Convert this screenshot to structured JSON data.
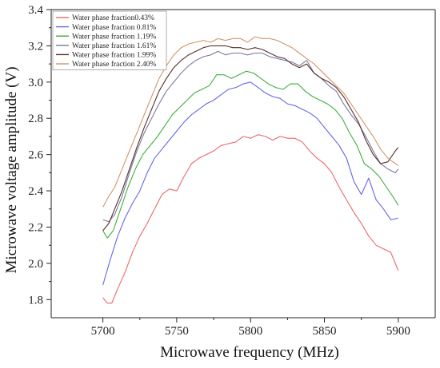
{
  "chart_data": {
    "type": "line",
    "title": "",
    "xlabel": "Microwave frequency  (MHz)",
    "ylabel": "Microwave voltage amplitude  (V)",
    "xlim": [
      5665,
      5925
    ],
    "ylim": [
      1.7,
      3.4
    ],
    "x_ticks": [
      5700,
      5750,
      5800,
      5850,
      5900
    ],
    "y_ticks": [
      1.8,
      2.0,
      2.2,
      2.4,
      2.6,
      2.8,
      3.0,
      3.2,
      3.4
    ],
    "y_tick_labels": [
      "1.8",
      "2.0",
      "2.2",
      "2.4",
      "2.6",
      "2.8",
      "3.0",
      "3.2",
      "3.4"
    ],
    "grid": false,
    "legend_position": "top-left",
    "series": [
      {
        "name": "Water phase fraction0.43%",
        "color": "#e8696b",
        "x": [
          5700,
          5703,
          5706,
          5710,
          5715,
          5720,
          5725,
          5730,
          5735,
          5740,
          5745,
          5750,
          5755,
          5760,
          5765,
          5770,
          5775,
          5780,
          5785,
          5790,
          5795,
          5800,
          5805,
          5810,
          5815,
          5820,
          5825,
          5830,
          5835,
          5840,
          5845,
          5850,
          5855,
          5860,
          5865,
          5870,
          5875,
          5880,
          5885,
          5890,
          5895,
          5900
        ],
        "y": [
          1.81,
          1.78,
          1.78,
          1.86,
          1.95,
          2.06,
          2.15,
          2.22,
          2.3,
          2.38,
          2.41,
          2.4,
          2.48,
          2.55,
          2.58,
          2.6,
          2.62,
          2.65,
          2.66,
          2.67,
          2.7,
          2.69,
          2.71,
          2.7,
          2.68,
          2.7,
          2.69,
          2.69,
          2.67,
          2.62,
          2.58,
          2.55,
          2.5,
          2.42,
          2.35,
          2.28,
          2.22,
          2.15,
          2.1,
          2.08,
          2.06,
          1.96
        ]
      },
      {
        "name": "Water phase fraction 0.81%",
        "color": "#6666e8",
        "x": [
          5700,
          5705,
          5710,
          5715,
          5720,
          5725,
          5730,
          5735,
          5740,
          5745,
          5750,
          5755,
          5760,
          5765,
          5770,
          5775,
          5780,
          5785,
          5790,
          5795,
          5800,
          5805,
          5810,
          5815,
          5820,
          5825,
          5830,
          5835,
          5840,
          5845,
          5850,
          5855,
          5860,
          5865,
          5870,
          5875,
          5880,
          5885,
          5890,
          5895,
          5900
        ],
        "y": [
          1.88,
          2.02,
          2.15,
          2.25,
          2.33,
          2.4,
          2.5,
          2.58,
          2.63,
          2.68,
          2.73,
          2.78,
          2.82,
          2.85,
          2.88,
          2.9,
          2.93,
          2.96,
          2.97,
          2.99,
          3.0,
          2.97,
          2.94,
          2.92,
          2.91,
          2.88,
          2.87,
          2.85,
          2.83,
          2.8,
          2.75,
          2.7,
          2.65,
          2.58,
          2.45,
          2.38,
          2.47,
          2.35,
          2.3,
          2.24,
          2.25
        ]
      },
      {
        "name": "Water phase fraction 1.19%",
        "color": "#3fae3f",
        "x": [
          5700,
          5703,
          5707,
          5712,
          5717,
          5722,
          5727,
          5732,
          5737,
          5742,
          5747,
          5752,
          5757,
          5762,
          5767,
          5772,
          5777,
          5782,
          5787,
          5792,
          5797,
          5802,
          5807,
          5812,
          5817,
          5822,
          5827,
          5832,
          5837,
          5842,
          5847,
          5852,
          5857,
          5862,
          5867,
          5872,
          5877,
          5882,
          5887,
          5892,
          5897,
          5900
        ],
        "y": [
          2.18,
          2.14,
          2.18,
          2.3,
          2.42,
          2.52,
          2.6,
          2.65,
          2.7,
          2.76,
          2.82,
          2.86,
          2.9,
          2.94,
          2.96,
          2.98,
          3.04,
          3.04,
          3.02,
          3.04,
          3.06,
          3.05,
          3.02,
          2.99,
          2.97,
          2.96,
          2.99,
          2.99,
          2.95,
          2.92,
          2.9,
          2.88,
          2.85,
          2.8,
          2.72,
          2.65,
          2.55,
          2.52,
          2.48,
          2.42,
          2.36,
          2.32
        ]
      },
      {
        "name": "Water phase fraction 1.61%",
        "color": "#7a7aa0",
        "x": [
          5700,
          5704,
          5708,
          5713,
          5718,
          5723,
          5728,
          5733,
          5738,
          5743,
          5748,
          5753,
          5758,
          5763,
          5768,
          5773,
          5778,
          5783,
          5788,
          5793,
          5798,
          5803,
          5808,
          5813,
          5818,
          5823,
          5828,
          5833,
          5838,
          5843,
          5848,
          5853,
          5858,
          5863,
          5868,
          5873,
          5878,
          5883,
          5888,
          5893,
          5898,
          5900
        ],
        "y": [
          2.24,
          2.23,
          2.27,
          2.37,
          2.5,
          2.62,
          2.72,
          2.8,
          2.88,
          2.95,
          3.0,
          3.05,
          3.09,
          3.12,
          3.14,
          3.15,
          3.17,
          3.15,
          3.16,
          3.16,
          3.15,
          3.16,
          3.16,
          3.14,
          3.13,
          3.12,
          3.11,
          3.09,
          3.12,
          3.05,
          3.02,
          2.98,
          2.95,
          2.88,
          2.82,
          2.77,
          2.7,
          2.62,
          2.55,
          2.52,
          2.5,
          2.52
        ]
      },
      {
        "name": "Water phase fraction 1.99%",
        "color": "#5a2e2e",
        "x": [
          5700,
          5704,
          5708,
          5713,
          5718,
          5723,
          5728,
          5733,
          5738,
          5743,
          5748,
          5753,
          5758,
          5763,
          5768,
          5773,
          5778,
          5783,
          5788,
          5793,
          5798,
          5803,
          5808,
          5813,
          5818,
          5823,
          5828,
          5833,
          5838,
          5843,
          5848,
          5853,
          5858,
          5863,
          5868,
          5873,
          5878,
          5883,
          5888,
          5893,
          5898,
          5900
        ],
        "y": [
          2.18,
          2.22,
          2.3,
          2.4,
          2.52,
          2.64,
          2.75,
          2.85,
          2.95,
          3.02,
          3.08,
          3.12,
          3.15,
          3.17,
          3.19,
          3.2,
          3.2,
          3.2,
          3.19,
          3.19,
          3.18,
          3.19,
          3.18,
          3.16,
          3.14,
          3.13,
          3.1,
          3.08,
          3.1,
          3.05,
          3.02,
          3.0,
          2.97,
          2.92,
          2.85,
          2.78,
          2.68,
          2.6,
          2.55,
          2.56,
          2.62,
          2.64
        ]
      },
      {
        "name": "Water phase fraction 2.40%",
        "color": "#d2946a",
        "x": [
          5700,
          5704,
          5708,
          5713,
          5718,
          5723,
          5728,
          5733,
          5738,
          5743,
          5748,
          5753,
          5758,
          5763,
          5768,
          5773,
          5778,
          5783,
          5788,
          5793,
          5798,
          5803,
          5808,
          5813,
          5818,
          5823,
          5828,
          5833,
          5838,
          5843,
          5848,
          5853,
          5858,
          5863,
          5868,
          5873,
          5878,
          5883,
          5888,
          5893,
          5898,
          5900
        ],
        "y": [
          2.31,
          2.37,
          2.42,
          2.52,
          2.62,
          2.72,
          2.82,
          2.92,
          3.02,
          3.09,
          3.15,
          3.19,
          3.21,
          3.22,
          3.23,
          3.22,
          3.24,
          3.23,
          3.24,
          3.24,
          3.22,
          3.25,
          3.24,
          3.24,
          3.23,
          3.21,
          3.19,
          3.16,
          3.13,
          3.1,
          3.06,
          3.02,
          2.98,
          2.94,
          2.88,
          2.82,
          2.76,
          2.7,
          2.63,
          2.58,
          2.55,
          2.54
        ]
      }
    ]
  }
}
